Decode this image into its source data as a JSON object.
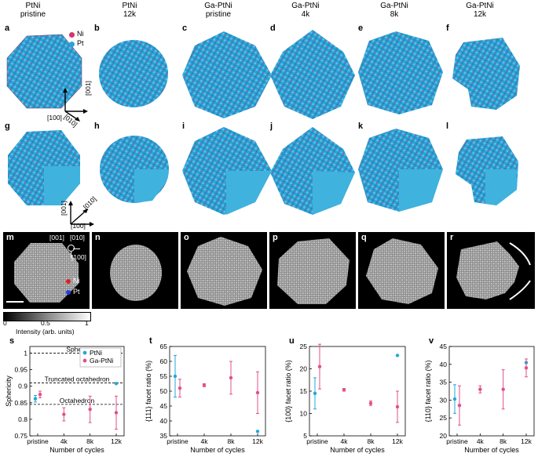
{
  "columns": [
    {
      "line1": "PtNi",
      "line2": "pristine"
    },
    {
      "line1": "PtNi",
      "line2": "12k"
    },
    {
      "line1": "Ga-PtNi",
      "line2": "pristine"
    },
    {
      "line1": "Ga-PtNi",
      "line2": "4k"
    },
    {
      "line1": "Ga-PtNi",
      "line2": "8k"
    },
    {
      "line1": "Ga-PtNi",
      "line2": "12k"
    }
  ],
  "row1_labels": [
    "a",
    "b",
    "c",
    "d",
    "e",
    "f"
  ],
  "row2_labels": [
    "g",
    "h",
    "i",
    "j",
    "k",
    "l"
  ],
  "row3_labels": [
    "m",
    "n",
    "o",
    "p",
    "q",
    "r"
  ],
  "legend_atoms": {
    "ni": "Ni",
    "pt": "Pt"
  },
  "colors": {
    "ni": "#d6336c",
    "pt": "#2aa3d6",
    "ptni_series": "#1fa9d8",
    "gaptni_series": "#e0508a",
    "dark": "#000000"
  },
  "axes_top": {
    "a1": "[001]",
    "a2": "[010]",
    "a3": "[100]"
  },
  "axes_mid": {
    "a1": "[001]",
    "a2": "[010]",
    "a3": "[100]"
  },
  "em_axes": {
    "a1": "[001]",
    "a2": "[010]",
    "a3": "[100]"
  },
  "em_legend": {
    "ni": "Ni",
    "pt": "Pt"
  },
  "colorbar": {
    "t0": "0",
    "t1": "0.5",
    "t2": "1",
    "label": "Intensity (arb. units)"
  },
  "chart_data": [
    {
      "panel": "s",
      "type": "scatter",
      "ylabel": "Sphericity",
      "xlabel": "Number of cycles",
      "categories": [
        "pristine",
        "4k",
        "8k",
        "12k"
      ],
      "ylim": [
        0.75,
        1.02
      ],
      "yticks": [
        "0.75",
        "0.8",
        "0.85",
        "0.9",
        "0.95",
        "1"
      ],
      "reference_lines": [
        {
          "label": "Sphere",
          "y": 1.0
        },
        {
          "label": "Truncated octahedron",
          "y": 0.91
        },
        {
          "label": "Octahedron",
          "y": 0.845
        }
      ],
      "series": [
        {
          "name": "PtNi",
          "points": [
            {
              "x": "pristine",
              "y": 0.862,
              "err": 0.01
            },
            {
              "x": "12k",
              "y": 0.908,
              "err": 0
            }
          ]
        },
        {
          "name": "Ga-PtNi",
          "points": [
            {
              "x": "pristine",
              "y": 0.875,
              "err": 0.01
            },
            {
              "x": "4k",
              "y": 0.815,
              "err": 0.02
            },
            {
              "x": "8k",
              "y": 0.83,
              "err": 0.04
            },
            {
              "x": "12k",
              "y": 0.82,
              "err": 0.05
            }
          ]
        }
      ]
    },
    {
      "panel": "t",
      "type": "scatter",
      "ylabel": "{111} facet ratio (%)",
      "xlabel": "Number of cycles",
      "categories": [
        "pristine",
        "4k",
        "8k",
        "12k"
      ],
      "ylim": [
        35,
        65
      ],
      "yticks": [
        "35",
        "40",
        "45",
        "50",
        "55",
        "60",
        "65"
      ],
      "series": [
        {
          "name": "PtNi",
          "points": [
            {
              "x": "pristine",
              "y": 55,
              "err": 7
            },
            {
              "x": "12k",
              "y": 36.5,
              "err": 0
            }
          ]
        },
        {
          "name": "Ga-PtNi",
          "points": [
            {
              "x": "pristine",
              "y": 51,
              "err": 3
            },
            {
              "x": "4k",
              "y": 52,
              "err": 0.5
            },
            {
              "x": "8k",
              "y": 54.5,
              "err": 5.5
            },
            {
              "x": "12k",
              "y": 49.5,
              "err": 7
            }
          ]
        }
      ]
    },
    {
      "panel": "u",
      "type": "scatter",
      "ylabel": "{100} facet ratio (%)",
      "xlabel": "Number of cycles",
      "categories": [
        "pristine",
        "4k",
        "8k",
        "12k"
      ],
      "ylim": [
        5,
        25
      ],
      "yticks": [
        "5",
        "10",
        "15",
        "20",
        "25"
      ],
      "series": [
        {
          "name": "PtNi",
          "points": [
            {
              "x": "pristine",
              "y": 14.5,
              "err": 3.5
            },
            {
              "x": "12k",
              "y": 23,
              "err": 0
            }
          ]
        },
        {
          "name": "Ga-PtNi",
          "points": [
            {
              "x": "pristine",
              "y": 20.5,
              "err": 5
            },
            {
              "x": "4k",
              "y": 15.3,
              "err": 0.3
            },
            {
              "x": "8k",
              "y": 12.3,
              "err": 0.5
            },
            {
              "x": "12k",
              "y": 11.5,
              "err": 3.5
            }
          ]
        }
      ]
    },
    {
      "panel": "v",
      "type": "scatter",
      "ylabel": "{110} facet ratio (%)",
      "xlabel": "Number of cycles",
      "categories": [
        "pristine",
        "4k",
        "8k",
        "12k"
      ],
      "ylim": [
        20,
        45
      ],
      "yticks": [
        "20",
        "25",
        "30",
        "35",
        "40",
        "45"
      ],
      "series": [
        {
          "name": "PtNi",
          "points": [
            {
              "x": "pristine",
              "y": 30.3,
              "err": 4
            },
            {
              "x": "12k",
              "y": 40.5,
              "err": 0
            }
          ]
        },
        {
          "name": "Ga-PtNi",
          "points": [
            {
              "x": "pristine",
              "y": 28.5,
              "err": 5.5
            },
            {
              "x": "4k",
              "y": 33,
              "err": 1
            },
            {
              "x": "8k",
              "y": 33,
              "err": 5.5
            },
            {
              "x": "12k",
              "y": 39,
              "err": 2.5
            }
          ]
        }
      ]
    }
  ]
}
